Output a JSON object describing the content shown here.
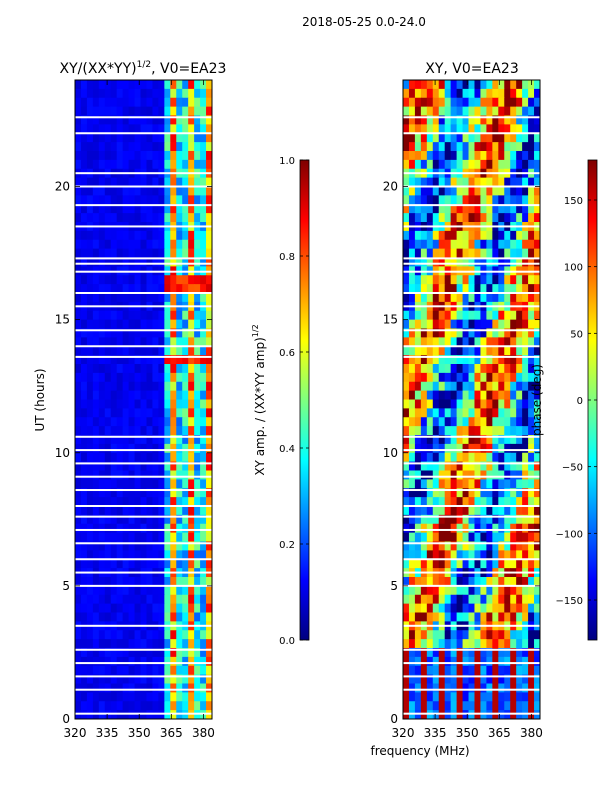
{
  "suptitle": "2018-05-25 0.0-24.0",
  "xlabel": "frequency (MHz)",
  "chart_data": [
    {
      "type": "heatmap",
      "title_main": "XY/(XX*YY)",
      "title_sup": "1/2",
      "title_tail": ", V0=EA23",
      "ylabel": "UT (hours)",
      "xlim": [
        320,
        384
      ],
      "ylim": [
        0,
        24
      ],
      "xticks": [
        320,
        335,
        350,
        365,
        380
      ],
      "yticks": [
        0,
        5,
        10,
        15,
        20
      ],
      "colorbar": {
        "label_main": "XY amp. / (XX*YY amp)",
        "label_sup": "1/2",
        "range": [
          0.0,
          1.0
        ],
        "ticks": [
          "0.0",
          "0.2",
          "0.4",
          "0.6",
          "0.8",
          "1.0"
        ],
        "colormap": "jet"
      }
    },
    {
      "type": "heatmap",
      "title_main": "XY, V0=EA23",
      "ylabel": "",
      "xlim": [
        320,
        384
      ],
      "ylim": [
        0,
        24
      ],
      "xticks": [
        320,
        335,
        350,
        365,
        380
      ],
      "yticks": [
        0,
        5,
        10,
        15,
        20
      ],
      "colorbar": {
        "label_main": "phase (deg)",
        "range": [
          -180,
          180
        ],
        "ticks": [
          "−150",
          "−100",
          "−50",
          "0",
          "50",
          "100",
          "150"
        ],
        "colormap": "jet"
      }
    }
  ]
}
